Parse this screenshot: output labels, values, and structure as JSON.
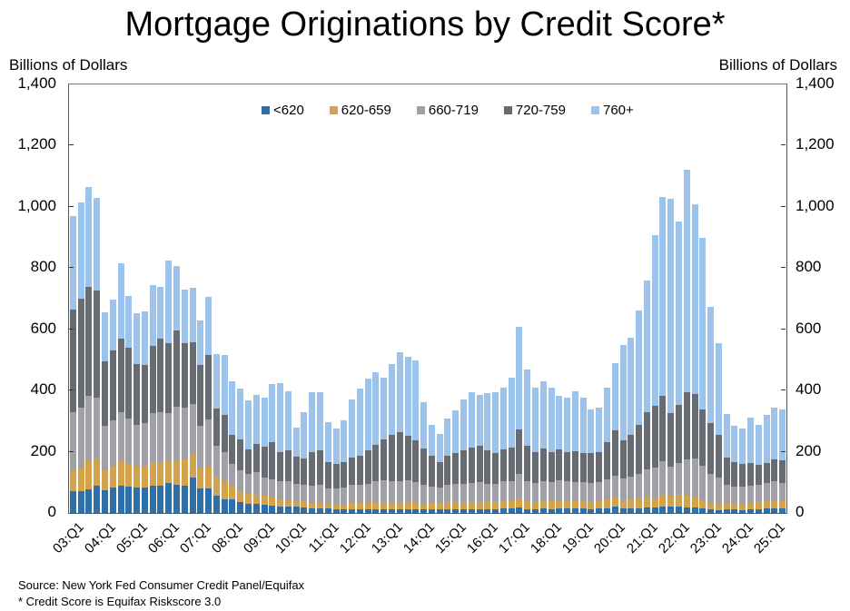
{
  "title": "Mortgage Originations by Credit Score*",
  "y_label_left": "Billions of Dollars",
  "y_label_right": "Billions of Dollars",
  "y_ticks": [
    "0",
    "200",
    "400",
    "600",
    "800",
    "1,000",
    "1,200",
    "1,400"
  ],
  "footnotes": {
    "source": "Source: New York Fed Consumer Credit Panel/Equifax",
    "note": "* Credit Score is Equifax Riskscore 3.0"
  },
  "legend": [
    {
      "label": "<620",
      "color": "#2e6fa7"
    },
    {
      "label": "620-659",
      "color": "#d4a24a"
    },
    {
      "label": "660-719",
      "color": "#a0a0a6"
    },
    {
      "label": "720-759",
      "color": "#676b72"
    },
    {
      "label": "760+",
      "color": "#9cc3eb"
    }
  ],
  "x_tick_labels": [
    "03:Q1",
    "04:Q1",
    "05:Q1",
    "06:Q1",
    "07:Q1",
    "08:Q1",
    "09:Q1",
    "10:Q1",
    "11:Q1",
    "12:Q1",
    "13:Q1",
    "14:Q1",
    "15:Q1",
    "16:Q1",
    "17:Q1",
    "18:Q1",
    "19:Q1",
    "20:Q1",
    "21:Q1",
    "22:Q1",
    "23:Q1",
    "24:Q1",
    "25:Q1"
  ],
  "chart_data": {
    "type": "bar",
    "stacked": true,
    "title": "Mortgage Originations by Credit Score*",
    "xlabel": "",
    "ylabel": "Billions of Dollars",
    "ylim": [
      0,
      1400
    ],
    "grid": false,
    "legend_position": "top-inside",
    "categories": [
      "03:Q1",
      "03:Q2",
      "03:Q3",
      "03:Q4",
      "04:Q1",
      "04:Q2",
      "04:Q3",
      "04:Q4",
      "05:Q1",
      "05:Q2",
      "05:Q3",
      "05:Q4",
      "06:Q1",
      "06:Q2",
      "06:Q3",
      "06:Q4",
      "07:Q1",
      "07:Q2",
      "07:Q3",
      "07:Q4",
      "08:Q1",
      "08:Q2",
      "08:Q3",
      "08:Q4",
      "09:Q1",
      "09:Q2",
      "09:Q3",
      "09:Q4",
      "10:Q1",
      "10:Q2",
      "10:Q3",
      "10:Q4",
      "11:Q1",
      "11:Q2",
      "11:Q3",
      "11:Q4",
      "12:Q1",
      "12:Q2",
      "12:Q3",
      "12:Q4",
      "13:Q1",
      "13:Q2",
      "13:Q3",
      "13:Q4",
      "14:Q1",
      "14:Q2",
      "14:Q3",
      "14:Q4",
      "15:Q1",
      "15:Q2",
      "15:Q3",
      "15:Q4",
      "16:Q1",
      "16:Q2",
      "16:Q3",
      "16:Q4",
      "17:Q1",
      "17:Q2",
      "17:Q3",
      "17:Q4",
      "18:Q1",
      "18:Q2",
      "18:Q3",
      "18:Q4",
      "19:Q1",
      "19:Q2",
      "19:Q3",
      "19:Q4",
      "20:Q1",
      "20:Q2",
      "20:Q3",
      "20:Q4",
      "21:Q1",
      "21:Q2",
      "21:Q3",
      "21:Q4",
      "22:Q1",
      "22:Q2",
      "22:Q3",
      "22:Q4",
      "23:Q1",
      "23:Q2",
      "23:Q3",
      "23:Q4",
      "24:Q1",
      "24:Q2",
      "24:Q3",
      "24:Q4",
      "25:Q1",
      "25:Q2"
    ],
    "series": [
      {
        "name": "<620",
        "values": [
          70,
          70,
          78,
          88,
          75,
          82,
          90,
          85,
          82,
          84,
          88,
          90,
          98,
          92,
          90,
          115,
          80,
          80,
          55,
          45,
          45,
          35,
          30,
          30,
          28,
          25,
          22,
          20,
          20,
          18,
          16,
          15,
          14,
          13,
          12,
          13,
          12,
          12,
          12,
          12,
          12,
          13,
          13,
          12,
          11,
          12,
          12,
          13,
          13,
          12,
          12,
          12,
          13,
          12,
          14,
          14,
          17,
          13,
          13,
          14,
          13,
          14,
          15,
          14,
          14,
          13,
          14,
          16,
          20,
          15,
          15,
          16,
          18,
          18,
          22,
          20,
          20,
          19,
          18,
          15,
          12,
          10,
          11,
          11,
          10,
          11,
          13,
          14,
          15,
          14
        ]
      },
      {
        "name": "620-659",
        "values": [
          70,
          75,
          95,
          90,
          65,
          70,
          80,
          75,
          70,
          70,
          78,
          75,
          72,
          80,
          85,
          82,
          65,
          70,
          65,
          60,
          40,
          35,
          32,
          30,
          28,
          25,
          22,
          22,
          20,
          20,
          18,
          18,
          17,
          18,
          18,
          20,
          20,
          22,
          22,
          24,
          22,
          23,
          23,
          22,
          20,
          20,
          20,
          23,
          23,
          24,
          24,
          24,
          25,
          23,
          26,
          27,
          30,
          25,
          24,
          26,
          25,
          27,
          26,
          26,
          25,
          24,
          26,
          29,
          31,
          28,
          29,
          32,
          35,
          31,
          36,
          37,
          38,
          36,
          35,
          28,
          22,
          20,
          21,
          20,
          20,
          22,
          24,
          25,
          27,
          25
        ]
      },
      {
        "name": "660-719",
        "values": [
          190,
          200,
          210,
          200,
          145,
          150,
          160,
          150,
          135,
          140,
          160,
          165,
          155,
          175,
          170,
          160,
          140,
          155,
          100,
          95,
          75,
          70,
          65,
          75,
          60,
          60,
          60,
          62,
          55,
          55,
          55,
          58,
          50,
          50,
          52,
          58,
          60,
          62,
          70,
          70,
          70,
          68,
          70,
          68,
          60,
          55,
          50,
          57,
          60,
          60,
          63,
          65,
          58,
          60,
          63,
          62,
          80,
          66,
          62,
          65,
          62,
          66,
          62,
          62,
          62,
          60,
          60,
          65,
          70,
          70,
          75,
          80,
          90,
          100,
          110,
          95,
          105,
          120,
          125,
          110,
          95,
          85,
          60,
          55,
          55,
          55,
          55,
          60,
          62,
          58
        ]
      },
      {
        "name": "720-759",
        "values": [
          335,
          355,
          355,
          350,
          210,
          230,
          240,
          230,
          200,
          190,
          220,
          240,
          230,
          250,
          210,
          200,
          200,
          210,
          120,
          120,
          95,
          100,
          80,
          90,
          100,
          120,
          95,
          100,
          90,
          85,
          110,
          115,
          85,
          80,
          85,
          90,
          95,
          110,
          120,
          135,
          150,
          160,
          145,
          135,
          120,
          100,
          85,
          95,
          100,
          110,
          115,
          120,
          110,
          100,
          105,
          110,
          145,
          115,
          100,
          105,
          100,
          100,
          95,
          100,
          95,
          100,
          100,
          120,
          150,
          125,
          135,
          160,
          185,
          200,
          215,
          175,
          190,
          220,
          210,
          185,
          165,
          140,
          90,
          80,
          75,
          75,
          65,
          65,
          70,
          75
        ]
      },
      {
        "name": "760+",
        "values": [
          305,
          315,
          327,
          302,
          160,
          165,
          245,
          170,
          165,
          176,
          200,
          170,
          270,
          210,
          175,
          180,
          145,
          190,
          180,
          195,
          175,
          165,
          160,
          160,
          160,
          190,
          225,
          195,
          95,
          150,
          195,
          190,
          130,
          115,
          135,
          190,
          220,
          232,
          235,
          200,
          232,
          260,
          260,
          260,
          150,
          100,
          90,
          120,
          140,
          165,
          180,
          165,
          185,
          200,
          200,
          230,
          335,
          250,
          210,
          220,
          210,
          175,
          180,
          195,
          180,
          140,
          145,
          180,
          220,
          310,
          320,
          375,
          430,
          560,
          650,
          700,
          600,
          725,
          620,
          560,
          380,
          300,
          140,
          120,
          115,
          150,
          130,
          155,
          170,
          165
        ]
      }
    ]
  }
}
